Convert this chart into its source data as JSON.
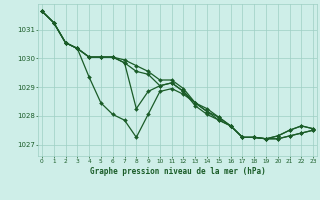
{
  "title": "Graphe pression niveau de la mer (hPa)",
  "bg_color": "#ceeee8",
  "grid_color": "#9ecfc4",
  "line_color": "#1a5c28",
  "x_labels": [
    "0",
    "1",
    "2",
    "3",
    "4",
    "5",
    "6",
    "7",
    "8",
    "9",
    "10",
    "11",
    "12",
    "13",
    "14",
    "15",
    "16",
    "17",
    "18",
    "19",
    "20",
    "21",
    "22",
    "23"
  ],
  "ylim": [
    1026.6,
    1031.9
  ],
  "yticks": [
    1027,
    1028,
    1029,
    1030,
    1031
  ],
  "series": [
    [
      1031.65,
      1031.25,
      1030.55,
      1030.35,
      1029.35,
      1028.45,
      1028.05,
      1027.85,
      1027.25,
      1028.05,
      1028.85,
      1028.95,
      1028.75,
      1028.45,
      1028.15,
      1027.85,
      1027.65,
      1027.25,
      1027.25,
      1027.2,
      1027.2,
      1027.3,
      1027.4,
      1027.5
    ],
    [
      1031.65,
      1031.25,
      1030.55,
      1030.35,
      1030.05,
      1030.05,
      1030.05,
      1029.85,
      1028.25,
      1028.85,
      1029.05,
      1029.15,
      1028.85,
      1028.45,
      1028.25,
      1027.95,
      1027.65,
      1027.25,
      1027.25,
      1027.2,
      1027.2,
      1027.3,
      1027.4,
      1027.5
    ],
    [
      1031.65,
      1031.25,
      1030.55,
      1030.35,
      1030.05,
      1030.05,
      1030.05,
      1029.85,
      1029.55,
      1029.45,
      1029.05,
      1029.15,
      1028.85,
      1028.35,
      1028.05,
      1027.85,
      1027.65,
      1027.25,
      1027.25,
      1027.2,
      1027.3,
      1027.5,
      1027.65,
      1027.55
    ],
    [
      1031.65,
      1031.25,
      1030.55,
      1030.35,
      1030.05,
      1030.05,
      1030.05,
      1029.95,
      1029.75,
      1029.55,
      1029.25,
      1029.25,
      1028.95,
      1028.45,
      1028.15,
      1027.95,
      1027.65,
      1027.25,
      1027.25,
      1027.2,
      1027.3,
      1027.5,
      1027.65,
      1027.55
    ]
  ]
}
